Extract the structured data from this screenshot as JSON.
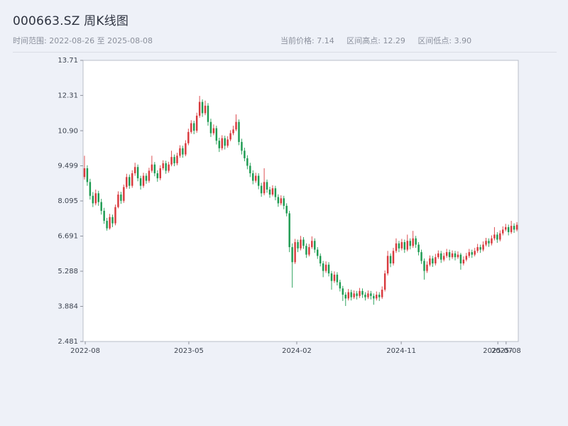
{
  "header": {
    "title": "000663.SZ 周K线图",
    "time_range": "时间范围: 2022-08-26 至 2025-08-08",
    "stats": [
      {
        "label": "当前价格:",
        "value": "7.14"
      },
      {
        "label": "区间高点:",
        "value": "12.29"
      },
      {
        "label": "区间低点:",
        "value": "3.90"
      }
    ]
  },
  "chart_data": {
    "type": "candlestick",
    "title": "000663.SZ 周K线图",
    "symbol": "000663.SZ",
    "frequency": "weekly",
    "start_date": "2022-08-26",
    "end_date": "2025-08-08",
    "current_price": 7.14,
    "range_high": 12.29,
    "range_low": 3.9,
    "ylim": [
      2.481,
      13.71
    ],
    "y_ticks": [
      "13.71",
      "12.31",
      "10.90",
      "9.499",
      "8.095",
      "6.691",
      "5.288",
      "3.884",
      "2.481"
    ],
    "x_ticks": [
      {
        "label": "2022-08",
        "pos": 0.005
      },
      {
        "label": "2023-05",
        "pos": 0.243
      },
      {
        "label": "2024-02",
        "pos": 0.491
      },
      {
        "label": "2024-11",
        "pos": 0.731
      },
      {
        "label": "2025-07",
        "pos": 0.953
      },
      {
        "label": "2025-08",
        "pos": 0.972
      }
    ],
    "grid": false,
    "legend": false,
    "colors": {
      "up": "#d93a3e",
      "down": "#1e9b52",
      "plot_bg": "#ffffff",
      "frame": "#b9bec9"
    },
    "ohlc_format": [
      "open",
      "high",
      "low",
      "close"
    ],
    "ohlc": [
      [
        9.05,
        9.9,
        8.95,
        9.4
      ],
      [
        9.4,
        9.52,
        8.7,
        8.85
      ],
      [
        8.85,
        8.98,
        8.15,
        8.3
      ],
      [
        8.3,
        8.45,
        7.85,
        8.0
      ],
      [
        8.0,
        8.55,
        7.92,
        8.4
      ],
      [
        8.4,
        8.5,
        7.9,
        8.05
      ],
      [
        8.05,
        8.18,
        7.55,
        7.7
      ],
      [
        7.7,
        7.82,
        7.18,
        7.3
      ],
      [
        7.3,
        7.42,
        6.91,
        7.0
      ],
      [
        7.0,
        7.58,
        6.95,
        7.45
      ],
      [
        7.45,
        7.55,
        7.05,
        7.2
      ],
      [
        7.2,
        7.95,
        7.12,
        7.85
      ],
      [
        7.85,
        8.48,
        7.8,
        8.35
      ],
      [
        8.35,
        8.46,
        7.98,
        8.1
      ],
      [
        8.1,
        8.75,
        8.02,
        8.65
      ],
      [
        8.65,
        9.18,
        8.58,
        9.05
      ],
      [
        9.05,
        9.15,
        8.58,
        8.7
      ],
      [
        8.7,
        9.32,
        8.62,
        9.2
      ],
      [
        9.2,
        9.62,
        9.1,
        9.45
      ],
      [
        9.45,
        9.55,
        8.88,
        9.0
      ],
      [
        9.0,
        9.1,
        8.55,
        8.7
      ],
      [
        8.7,
        9.22,
        8.62,
        9.1
      ],
      [
        9.1,
        9.2,
        8.78,
        8.9
      ],
      [
        8.9,
        9.42,
        8.82,
        9.3
      ],
      [
        9.3,
        9.9,
        9.22,
        9.55
      ],
      [
        9.55,
        9.65,
        9.08,
        9.2
      ],
      [
        9.2,
        9.32,
        8.86,
        9.0
      ],
      [
        9.0,
        9.52,
        8.92,
        9.4
      ],
      [
        9.4,
        9.72,
        9.32,
        9.6
      ],
      [
        9.6,
        9.7,
        9.18,
        9.3
      ],
      [
        9.3,
        9.66,
        9.22,
        9.55
      ],
      [
        9.55,
        10.1,
        9.48,
        9.85
      ],
      [
        9.85,
        9.95,
        9.48,
        9.6
      ],
      [
        9.6,
        10.02,
        9.52,
        9.9
      ],
      [
        9.9,
        10.32,
        9.82,
        10.2
      ],
      [
        10.2,
        10.3,
        9.82,
        9.95
      ],
      [
        9.95,
        10.52,
        9.88,
        10.4
      ],
      [
        10.4,
        10.98,
        10.32,
        10.85
      ],
      [
        10.85,
        11.32,
        10.78,
        11.2
      ],
      [
        11.2,
        11.3,
        10.76,
        10.9
      ],
      [
        10.9,
        11.62,
        10.82,
        11.5
      ],
      [
        11.5,
        12.29,
        11.42,
        12.05
      ],
      [
        12.05,
        12.15,
        11.45,
        11.6
      ],
      [
        11.6,
        12.1,
        11.52,
        11.9
      ],
      [
        11.9,
        12.0,
        11.1,
        11.25
      ],
      [
        11.25,
        11.38,
        10.65,
        10.8
      ],
      [
        10.8,
        11.15,
        10.72,
        11.0
      ],
      [
        11.0,
        11.1,
        10.35,
        10.5
      ],
      [
        10.5,
        10.62,
        10.05,
        10.2
      ],
      [
        10.2,
        10.72,
        10.12,
        10.6
      ],
      [
        10.6,
        10.7,
        10.15,
        10.3
      ],
      [
        10.3,
        10.68,
        10.22,
        10.55
      ],
      [
        10.55,
        10.92,
        10.48,
        10.8
      ],
      [
        10.8,
        11.1,
        10.72,
        10.95
      ],
      [
        10.95,
        11.55,
        10.88,
        11.25
      ],
      [
        11.25,
        11.35,
        10.32,
        10.45
      ],
      [
        10.45,
        10.58,
        9.95,
        10.1
      ],
      [
        10.1,
        10.22,
        9.68,
        9.8
      ],
      [
        9.8,
        9.92,
        9.36,
        9.5
      ],
      [
        9.5,
        9.62,
        9.05,
        9.2
      ],
      [
        9.2,
        9.32,
        8.76,
        8.9
      ],
      [
        8.9,
        9.22,
        8.82,
        9.1
      ],
      [
        9.1,
        9.2,
        8.56,
        8.7
      ],
      [
        8.7,
        8.82,
        8.26,
        8.4
      ],
      [
        8.4,
        9.4,
        8.32,
        8.85
      ],
      [
        8.85,
        8.95,
        8.42,
        8.55
      ],
      [
        8.55,
        8.66,
        8.22,
        8.35
      ],
      [
        8.35,
        8.72,
        8.28,
        8.6
      ],
      [
        8.6,
        8.7,
        8.12,
        8.25
      ],
      [
        8.25,
        8.36,
        7.86,
        8.0
      ],
      [
        8.0,
        8.32,
        7.92,
        8.2
      ],
      [
        8.2,
        8.3,
        7.76,
        7.9
      ],
      [
        7.9,
        8.0,
        7.48,
        7.6
      ],
      [
        7.6,
        7.7,
        6.05,
        6.25
      ],
      [
        6.25,
        6.4,
        4.63,
        5.65
      ],
      [
        5.65,
        6.58,
        5.58,
        6.45
      ],
      [
        6.45,
        6.55,
        6.05,
        6.2
      ],
      [
        6.2,
        6.7,
        6.12,
        6.55
      ],
      [
        6.55,
        6.65,
        6.18,
        6.3
      ],
      [
        6.3,
        6.4,
        5.82,
        5.95
      ],
      [
        5.95,
        6.38,
        5.88,
        6.25
      ],
      [
        6.25,
        6.68,
        6.18,
        6.5
      ],
      [
        6.5,
        6.6,
        6.02,
        6.15
      ],
      [
        6.15,
        6.25,
        5.78,
        5.9
      ],
      [
        5.9,
        6.0,
        5.48,
        5.6
      ],
      [
        5.6,
        5.7,
        5.05,
        5.3
      ],
      [
        5.3,
        5.68,
        5.22,
        5.55
      ],
      [
        5.55,
        5.65,
        5.08,
        5.2
      ],
      [
        5.2,
        5.3,
        4.55,
        4.9
      ],
      [
        4.9,
        5.28,
        4.82,
        5.15
      ],
      [
        5.15,
        5.25,
        4.72,
        4.85
      ],
      [
        4.85,
        4.95,
        4.48,
        4.6
      ],
      [
        4.6,
        4.7,
        4.1,
        4.35
      ],
      [
        4.35,
        4.45,
        3.9,
        4.2
      ],
      [
        4.2,
        4.58,
        4.12,
        4.45
      ],
      [
        4.45,
        4.55,
        4.12,
        4.25
      ],
      [
        4.25,
        4.52,
        4.18,
        4.4
      ],
      [
        4.4,
        4.5,
        4.16,
        4.3
      ],
      [
        4.3,
        4.62,
        4.22,
        4.5
      ],
      [
        4.5,
        4.6,
        4.22,
        4.35
      ],
      [
        4.35,
        4.45,
        4.12,
        4.25
      ],
      [
        4.25,
        4.52,
        4.18,
        4.4
      ],
      [
        4.4,
        4.5,
        4.16,
        4.3
      ],
      [
        4.3,
        4.4,
        3.95,
        4.2
      ],
      [
        4.2,
        4.48,
        4.12,
        4.35
      ],
      [
        4.35,
        4.45,
        4.1,
        4.25
      ],
      [
        4.25,
        4.68,
        4.18,
        4.55
      ],
      [
        4.55,
        5.32,
        4.48,
        5.2
      ],
      [
        5.2,
        6.1,
        5.12,
        5.9
      ],
      [
        5.9,
        6.0,
        5.45,
        5.6
      ],
      [
        5.6,
        6.22,
        5.52,
        6.1
      ],
      [
        6.1,
        6.6,
        6.02,
        6.4
      ],
      [
        6.4,
        6.5,
        6.05,
        6.2
      ],
      [
        6.2,
        6.58,
        6.12,
        6.45
      ],
      [
        6.45,
        6.55,
        6.02,
        6.15
      ],
      [
        6.15,
        6.75,
        6.08,
        6.5
      ],
      [
        6.5,
        6.6,
        6.16,
        6.3
      ],
      [
        6.3,
        6.9,
        6.22,
        6.6
      ],
      [
        6.6,
        6.7,
        6.22,
        6.35
      ],
      [
        6.35,
        6.45,
        5.92,
        6.05
      ],
      [
        6.05,
        6.15,
        5.58,
        5.7
      ],
      [
        5.7,
        5.8,
        4.95,
        5.3
      ],
      [
        5.3,
        5.68,
        5.22,
        5.55
      ],
      [
        5.55,
        5.92,
        5.48,
        5.8
      ],
      [
        5.8,
        5.9,
        5.46,
        5.6
      ],
      [
        5.6,
        5.98,
        5.52,
        5.85
      ],
      [
        5.85,
        6.12,
        5.78,
        6.0
      ],
      [
        6.0,
        6.1,
        5.62,
        5.75
      ],
      [
        5.75,
        6.02,
        5.68,
        5.9
      ],
      [
        5.9,
        6.18,
        5.82,
        6.05
      ],
      [
        6.05,
        6.15,
        5.72,
        5.85
      ],
      [
        5.85,
        6.12,
        5.78,
        6.0
      ],
      [
        6.0,
        6.1,
        5.72,
        5.85
      ],
      [
        5.85,
        6.08,
        5.78,
        5.95
      ],
      [
        5.95,
        6.02,
        5.35,
        5.6
      ],
      [
        5.6,
        5.88,
        5.52,
        5.75
      ],
      [
        5.75,
        6.02,
        5.68,
        5.9
      ],
      [
        5.9,
        6.18,
        5.82,
        6.05
      ],
      [
        6.05,
        6.15,
        5.82,
        5.95
      ],
      [
        5.95,
        6.22,
        5.88,
        6.1
      ],
      [
        6.1,
        6.38,
        6.02,
        6.25
      ],
      [
        6.25,
        6.35,
        6.02,
        6.15
      ],
      [
        6.15,
        6.48,
        6.08,
        6.35
      ],
      [
        6.35,
        6.62,
        6.28,
        6.5
      ],
      [
        6.5,
        6.6,
        6.26,
        6.4
      ],
      [
        6.4,
        6.72,
        6.32,
        6.6
      ],
      [
        6.6,
        7.05,
        6.52,
        6.75
      ],
      [
        6.75,
        6.85,
        6.42,
        6.55
      ],
      [
        6.55,
        6.92,
        6.48,
        6.8
      ],
      [
        6.8,
        7.08,
        6.72,
        6.95
      ],
      [
        6.95,
        7.18,
        6.88,
        7.05
      ],
      [
        7.05,
        7.15,
        6.72,
        6.85
      ],
      [
        6.85,
        7.3,
        6.78,
        7.1
      ],
      [
        7.1,
        7.2,
        6.82,
        6.95
      ],
      [
        6.95,
        7.25,
        6.88,
        7.14
      ]
    ]
  }
}
